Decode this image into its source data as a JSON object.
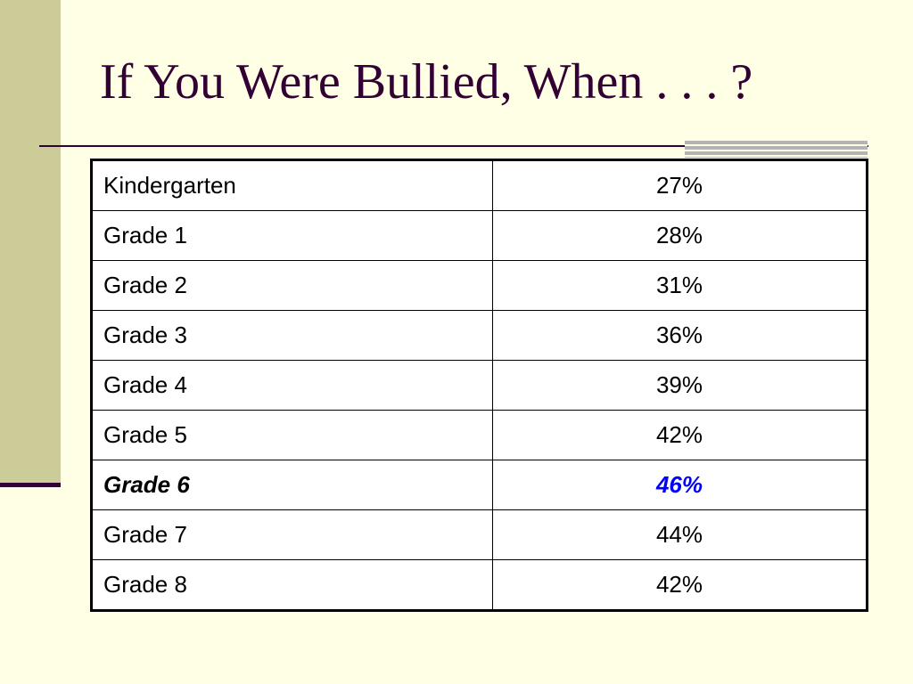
{
  "slide": {
    "title": "If You Were Bullied, When . . . ?"
  },
  "table": {
    "rows": [
      {
        "label": "Kindergarten",
        "value": "27%"
      },
      {
        "label": "Grade 1",
        "value": "28%"
      },
      {
        "label": "Grade 2",
        "value": "31%"
      },
      {
        "label": "Grade 3",
        "value": "36%"
      },
      {
        "label": "Grade 4",
        "value": "39%"
      },
      {
        "label": "Grade 5",
        "value": "42%"
      },
      {
        "label": "Grade 6",
        "value": "46%",
        "highlight": true
      },
      {
        "label": "Grade 7",
        "value": "44%"
      },
      {
        "label": "Grade 8",
        "value": "42%"
      }
    ],
    "highlight_color": "#0000ff"
  },
  "theme": {
    "background": "#ffffe5",
    "sidebar": "#cccc99",
    "accent_dark": "#330033",
    "accent_gray": "#b3b3b3"
  }
}
